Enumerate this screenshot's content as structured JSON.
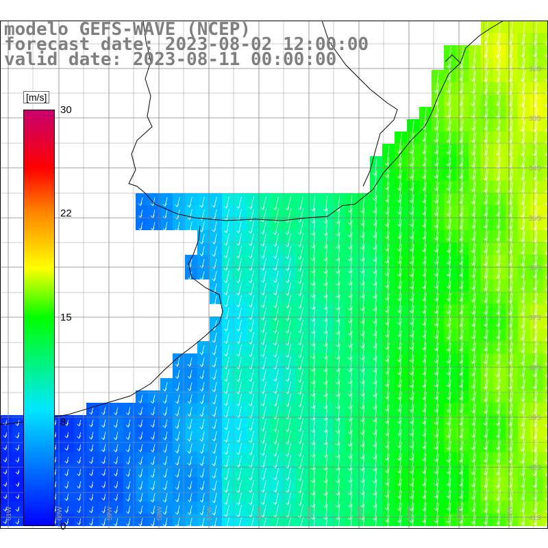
{
  "title": {
    "model": "modelo GEFS-WAVE (NCEP)",
    "forecast": "forecast date: 2023-08-02 12:00:00",
    "valid": "valid date: 2023-08-11 00:00:00"
  },
  "colorbar": {
    "unit": "[m/s]",
    "ticks": [
      "30",
      "22",
      "15",
      "8",
      "0"
    ],
    "colors": [
      "#0000ff",
      "#00e8ff",
      "#00ff00",
      "#ffff00",
      "#ff7f00",
      "#ff0000",
      "#c8006e"
    ]
  },
  "map": {
    "lat_labels": [
      "32S",
      "33S",
      "34S",
      "35S",
      "36S",
      "37S",
      "38S",
      "39S",
      "40S",
      "41S"
    ],
    "lon_labels": [
      "61W",
      "60W",
      "59W",
      "58W",
      "57W",
      "56W",
      "55W",
      "54W",
      "53W",
      "52W",
      "51W"
    ],
    "land_color": "#ffffff",
    "grid_color": "#808080",
    "arrow_color": "#ffffff"
  }
}
